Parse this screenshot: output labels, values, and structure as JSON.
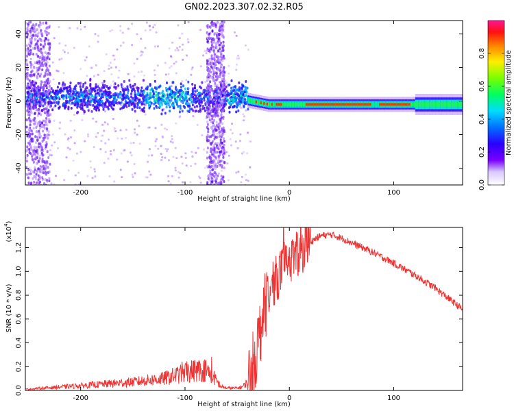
{
  "figure": {
    "title": "GN02.2023.307.02.32.R05"
  },
  "chart_data": [
    {
      "type": "heatmap",
      "xlabel": "Height of straight line (km)",
      "ylabel": "Frequency (Hz)",
      "xlim": [
        -253,
        166
      ],
      "ylim": [
        -50,
        48
      ],
      "xticks": [
        -200,
        -100,
        0,
        100
      ],
      "yticks": [
        -40,
        -20,
        0,
        20,
        40
      ],
      "colorbar": {
        "label": "Normalized spectral amplitude",
        "range": [
          0,
          1
        ],
        "ticks": [
          0.0,
          0.2,
          0.4,
          0.6,
          0.8
        ],
        "colormap": [
          "#7a00ff",
          "#3300ff",
          "#0066ff",
          "#00dcff",
          "#00ff44",
          "#b4ff00",
          "#ffe600",
          "#ff7a00",
          "#ff0000",
          "#ff1493"
        ]
      },
      "features": [
        {
          "x_range": [
            -253,
            -40
          ],
          "center_hz": 3,
          "halfwidth_hz": 9,
          "amplitude": 0.35
        },
        {
          "x_range": [
            -80,
            -63
          ],
          "center_hz": 0,
          "halfwidth_hz": 48,
          "amplitude": 0.12
        },
        {
          "x_range": [
            -253,
            -230
          ],
          "center_hz": 0,
          "halfwidth_hz": 48,
          "amplitude": 0.12
        },
        {
          "x_range": [
            -40,
            166
          ],
          "center_hz": -2,
          "halfwidth_hz": 3,
          "amplitude": 0.95
        }
      ]
    },
    {
      "type": "line",
      "xlabel": "Height of straight line (km)",
      "ylabel": "SNR (10 * v/v)",
      "scale_label": "(x10",
      "scale_exp": "4",
      "scale_suffix": ")",
      "xlim": [
        -253,
        166
      ],
      "ylim": [
        0,
        1.37
      ],
      "xticks": [
        -200,
        -100,
        0,
        100
      ],
      "yticks": [
        0.0,
        0.2,
        0.4,
        0.6,
        0.8,
        1.0,
        1.2
      ],
      "series": [
        {
          "color": "#ee3333",
          "x": [
            -253,
            -200,
            -150,
            -120,
            -100,
            -90,
            -80,
            -75,
            -70,
            -65,
            -60,
            -55,
            -50,
            -45,
            -40,
            -35,
            -30,
            -25,
            -20,
            -15,
            -10,
            -5,
            0,
            10,
            20,
            30,
            40,
            50,
            60,
            80,
            100,
            120,
            140,
            166
          ],
          "y": [
            0.01,
            0.04,
            0.07,
            0.1,
            0.15,
            0.17,
            0.17,
            0.14,
            0.08,
            0.03,
            0.02,
            0.02,
            0.02,
            0.03,
            0.07,
            0.2,
            0.4,
            0.65,
            0.8,
            0.9,
            0.98,
            1.04,
            1.08,
            1.16,
            1.25,
            1.3,
            1.31,
            1.28,
            1.24,
            1.16,
            1.07,
            0.97,
            0.86,
            0.68
          ]
        }
      ]
    }
  ]
}
